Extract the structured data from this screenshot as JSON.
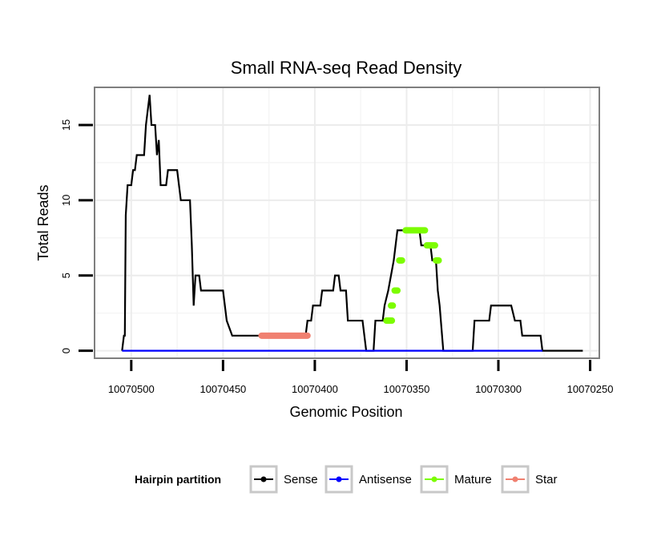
{
  "chart_data": {
    "type": "line",
    "title": "Small RNA-seq Read Density",
    "xlabel": "Genomic Position",
    "ylabel": "Total Reads",
    "x_reversed": true,
    "xlim": [
      10070520,
      10070245
    ],
    "ylim": [
      -0.5,
      17.5
    ],
    "x_ticks": [
      10070500,
      10070450,
      10070400,
      10070350,
      10070300,
      10070250
    ],
    "x_tick_labels": [
      "10070500",
      "10070450",
      "10070400",
      "10070350",
      "10070300",
      "10070250"
    ],
    "y_ticks": [
      0,
      5,
      10,
      15
    ],
    "y_tick_labels": [
      "0",
      "5",
      "10",
      "15"
    ],
    "grid": true,
    "legend": {
      "title": "Hairpin partition",
      "position": "bottom",
      "entries": [
        "Sense",
        "Antisense",
        "Mature",
        "Star"
      ]
    },
    "colors": {
      "Sense": "#000000",
      "Antisense": "#0000ff",
      "Mature": "#7cfc00",
      "Star": "#f08070"
    },
    "series": [
      {
        "name": "Sense",
        "points": [
          [
            10070505,
            0
          ],
          [
            10070504,
            1
          ],
          [
            10070503.5,
            1
          ],
          [
            10070503,
            9
          ],
          [
            10070502,
            11
          ],
          [
            10070500,
            11
          ],
          [
            10070499,
            12
          ],
          [
            10070498,
            12
          ],
          [
            10070497,
            13
          ],
          [
            10070493,
            13
          ],
          [
            10070492,
            15
          ],
          [
            10070490,
            17
          ],
          [
            10070489,
            15
          ],
          [
            10070487,
            15
          ],
          [
            10070486,
            13
          ],
          [
            10070485,
            14
          ],
          [
            10070484,
            11
          ],
          [
            10070481,
            11
          ],
          [
            10070480,
            12
          ],
          [
            10070475,
            12
          ],
          [
            10070473,
            10
          ],
          [
            10070468,
            10
          ],
          [
            10070467,
            7
          ],
          [
            10070466,
            3
          ],
          [
            10070465,
            5
          ],
          [
            10070463,
            5
          ],
          [
            10070462,
            4
          ],
          [
            10070450,
            4
          ],
          [
            10070448,
            2
          ],
          [
            10070445,
            1
          ],
          [
            10070405,
            1
          ],
          [
            10070404,
            2
          ],
          [
            10070402,
            2
          ],
          [
            10070401,
            3
          ],
          [
            10070397,
            3
          ],
          [
            10070396,
            4
          ],
          [
            10070390,
            4
          ],
          [
            10070389,
            5
          ],
          [
            10070387,
            5
          ],
          [
            10070386,
            4
          ],
          [
            10070383,
            4
          ],
          [
            10070382,
            2
          ],
          [
            10070374,
            2
          ],
          [
            10070373,
            1
          ],
          [
            10070372,
            0
          ],
          [
            10070368,
            0
          ],
          [
            10070367,
            2
          ],
          [
            10070363,
            2
          ],
          [
            10070362,
            3
          ],
          [
            10070360,
            4
          ],
          [
            10070357,
            6
          ],
          [
            10070355,
            8
          ],
          [
            10070343,
            8
          ],
          [
            10070342,
            7
          ],
          [
            10070337,
            7
          ],
          [
            10070336,
            6
          ],
          [
            10070334,
            6
          ],
          [
            10070333,
            4
          ],
          [
            10070332,
            3
          ],
          [
            10070330,
            0
          ],
          [
            10070314,
            0
          ],
          [
            10070313,
            2
          ],
          [
            10070305,
            2
          ],
          [
            10070304,
            3
          ],
          [
            10070293,
            3
          ],
          [
            10070291,
            2
          ],
          [
            10070288,
            2
          ],
          [
            10070287,
            1
          ],
          [
            10070277,
            1
          ],
          [
            10070276,
            0
          ],
          [
            10070254,
            0
          ]
        ]
      },
      {
        "name": "Antisense",
        "points": [
          [
            10070505,
            0
          ],
          [
            10070276,
            0
          ]
        ]
      },
      {
        "name": "Mature",
        "segments": [
          [
            [
              10070361,
              2
            ],
            [
              10070358,
              2
            ]
          ],
          [
            [
              10070358.5,
              3
            ],
            [
              10070357.5,
              3
            ]
          ],
          [
            [
              10070356.5,
              4
            ],
            [
              10070355,
              4
            ]
          ],
          [
            [
              10070354,
              6
            ],
            [
              10070352.5,
              6
            ]
          ],
          [
            [
              10070350.5,
              8
            ],
            [
              10070340,
              8
            ]
          ],
          [
            [
              10070339,
              7
            ],
            [
              10070334.5,
              7
            ]
          ],
          [
            [
              10070334,
              6
            ],
            [
              10070332.5,
              6
            ]
          ]
        ]
      },
      {
        "name": "Star",
        "segments": [
          [
            [
              10070429,
              1
            ],
            [
              10070404,
              1
            ]
          ]
        ]
      }
    ]
  }
}
